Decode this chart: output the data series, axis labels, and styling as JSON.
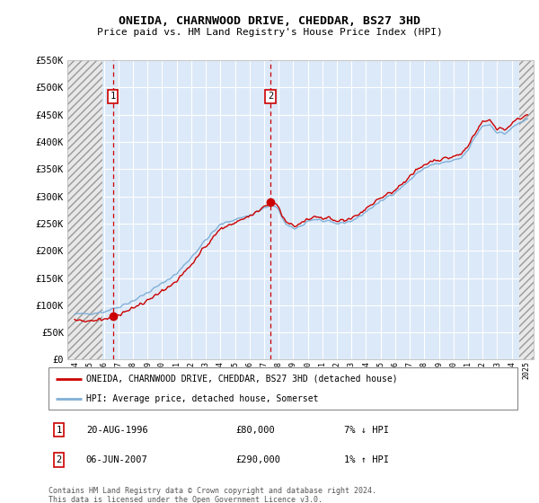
{
  "title": "ONEIDA, CHARNWOOD DRIVE, CHEDDAR, BS27 3HD",
  "subtitle": "Price paid vs. HM Land Registry's House Price Index (HPI)",
  "legend_line1": "ONEIDA, CHARNWOOD DRIVE, CHEDDAR, BS27 3HD (detached house)",
  "legend_line2": "HPI: Average price, detached house, Somerset",
  "footnote": "Contains HM Land Registry data © Crown copyright and database right 2024.\nThis data is licensed under the Open Government Licence v3.0.",
  "transactions": [
    {
      "label": "1",
      "date": "20-AUG-1996",
      "price": 80000,
      "hpi_pct": "7% ↓ HPI",
      "year": 1996.63
    },
    {
      "label": "2",
      "date": "06-JUN-2007",
      "price": 290000,
      "hpi_pct": "1% ↑ HPI",
      "year": 2007.43
    }
  ],
  "ylim": [
    0,
    550000
  ],
  "yticks": [
    0,
    50000,
    100000,
    150000,
    200000,
    250000,
    300000,
    350000,
    400000,
    450000,
    500000,
    550000
  ],
  "ytick_labels": [
    "£0",
    "£50K",
    "£100K",
    "£150K",
    "£200K",
    "£250K",
    "£300K",
    "£350K",
    "£400K",
    "£450K",
    "£500K",
    "£550K"
  ],
  "xlim_start": 1993.5,
  "xlim_end": 2025.5,
  "hatch_end_year": 1995.9,
  "hatch_start_year2": 2024.5,
  "background_color": "#dce9f8",
  "hatch_facecolor": "#e8e8e8",
  "red_color": "#cc0000",
  "blue_color": "#80b0d8",
  "grid_color": "#ffffff",
  "marker_box_color": "#cc0000",
  "transaction1_x": 1996.63,
  "transaction1_y": 80000,
  "transaction2_x": 2007.43,
  "transaction2_y": 290000
}
